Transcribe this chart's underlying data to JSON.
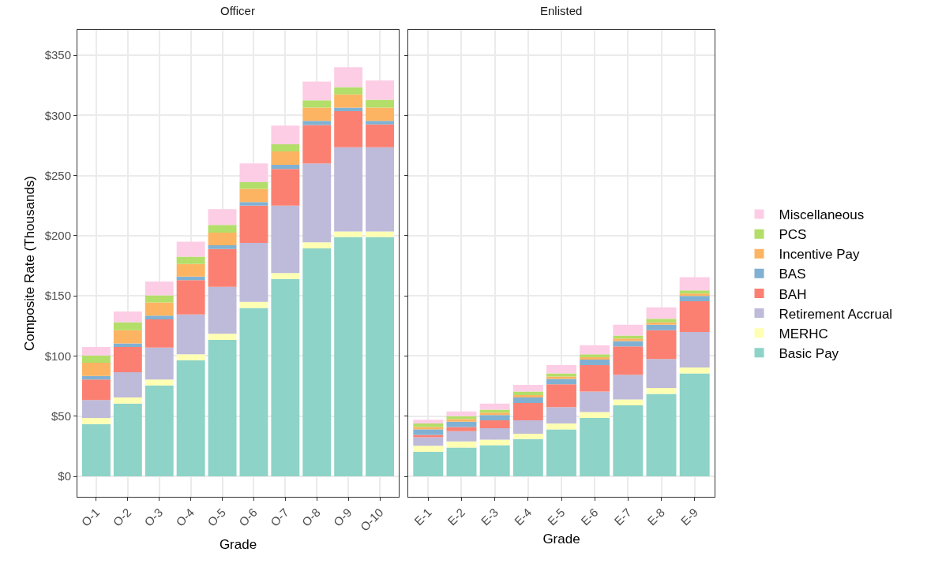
{
  "chart_data": [
    {
      "type": "bar",
      "stacked": true,
      "title": "Officer",
      "xlabel": "Grade",
      "ylabel": "Composite Rate (Thousands)",
      "categories": [
        "O-1",
        "O-2",
        "O-3",
        "O-4",
        "O-5",
        "O-6",
        "O-7",
        "O-8",
        "O-9",
        "O-10"
      ],
      "ylim": [
        -17,
        371
      ],
      "yticks": [
        {
          "value": 0,
          "label": "$0"
        },
        {
          "value": 50,
          "label": "$50"
        },
        {
          "value": 100,
          "label": "$100"
        },
        {
          "value": 150,
          "label": "$150"
        },
        {
          "value": 200,
          "label": "$200"
        },
        {
          "value": 250,
          "label": "$250"
        },
        {
          "value": 300,
          "label": "$300"
        },
        {
          "value": 350,
          "label": "$350"
        }
      ],
      "grid": true,
      "legend": "right",
      "series": [
        {
          "name": "Basic Pay",
          "color": "#8dd3c7",
          "values": [
            43.5,
            60.5,
            75.5,
            96.5,
            113.5,
            140,
            164,
            189.5,
            199,
            199
          ]
        },
        {
          "name": "MERHC",
          "color": "#ffffb3",
          "values": [
            5,
            5,
            5,
            5,
            5,
            5,
            5,
            5,
            4.5,
            4.5
          ]
        },
        {
          "name": "Retirement Accrual",
          "color": "#bebada",
          "values": [
            15,
            21,
            26.5,
            33,
            39,
            49,
            56,
            65.5,
            70,
            70
          ]
        },
        {
          "name": "BAH",
          "color": "#fb8072",
          "values": [
            17,
            21,
            23.5,
            28.5,
            31.5,
            31,
            30.5,
            32,
            30,
            19
          ]
        },
        {
          "name": "BAS",
          "color": "#80b1d3",
          "values": [
            3,
            3,
            3,
            3,
            3,
            3,
            3.5,
            3.5,
            3,
            3
          ]
        },
        {
          "name": "Incentive Pay",
          "color": "#fdb462",
          "values": [
            11,
            11,
            11,
            10.5,
            10.5,
            11,
            11,
            11,
            11,
            11
          ]
        },
        {
          "name": "PCS",
          "color": "#b3de69",
          "values": [
            6,
            6.5,
            6,
            6,
            6.5,
            5.5,
            6,
            6,
            6,
            6.5
          ]
        },
        {
          "name": "Miscellaneous",
          "color": "#fccde5",
          "values": [
            7,
            9,
            11.5,
            12.5,
            13,
            15.5,
            15.5,
            15.5,
            16.5,
            16
          ]
        }
      ]
    },
    {
      "type": "bar",
      "stacked": true,
      "title": "Enlisted",
      "xlabel": "Grade",
      "categories": [
        "E-1",
        "E-2",
        "E-3",
        "E-4",
        "E-5",
        "E-6",
        "E-7",
        "E-8",
        "E-9"
      ],
      "ylim": [
        -17,
        371
      ],
      "yticks": [
        {
          "value": 0,
          "label": null
        },
        {
          "value": 50,
          "label": null
        },
        {
          "value": 100,
          "label": null
        },
        {
          "value": 150,
          "label": null
        },
        {
          "value": 200,
          "label": null
        },
        {
          "value": 250,
          "label": null
        },
        {
          "value": 300,
          "label": null
        },
        {
          "value": 350,
          "label": null
        }
      ],
      "grid": true,
      "tick_labels": "x",
      "series": [
        {
          "name": "Basic Pay",
          "color": "#8dd3c7",
          "values": [
            20.5,
            24,
            26,
            31,
            39,
            48.5,
            59,
            68.5,
            85.5
          ]
        },
        {
          "name": "MERHC",
          "color": "#ffffb3",
          "values": [
            5,
            5,
            4.5,
            4.5,
            5,
            5,
            5,
            5,
            5
          ]
        },
        {
          "name": "Retirement Accrual",
          "color": "#bebada",
          "values": [
            7,
            8.5,
            9.5,
            11,
            13.5,
            17,
            20.5,
            24,
            29.5
          ]
        },
        {
          "name": "BAH",
          "color": "#fb8072",
          "values": [
            2,
            3.5,
            6.5,
            14.5,
            19,
            22,
            23.5,
            24,
            25.5
          ]
        },
        {
          "name": "BAS",
          "color": "#80b1d3",
          "values": [
            4.5,
            4.5,
            4.5,
            4.5,
            4.5,
            4.5,
            4.5,
            4.5,
            4.5
          ]
        },
        {
          "name": "Incentive Pay",
          "color": "#fdb462",
          "values": [
            2,
            2,
            2,
            2,
            2,
            2,
            2,
            2,
            2
          ]
        },
        {
          "name": "PCS",
          "color": "#b3de69",
          "values": [
            3,
            2.5,
            2.5,
            3,
            2.5,
            2.5,
            2.5,
            3,
            2.5
          ]
        },
        {
          "name": "Miscellaneous",
          "color": "#fccde5",
          "values": [
            3,
            4,
            5,
            5.5,
            7,
            7.5,
            9,
            9.5,
            11
          ]
        }
      ]
    }
  ]
}
